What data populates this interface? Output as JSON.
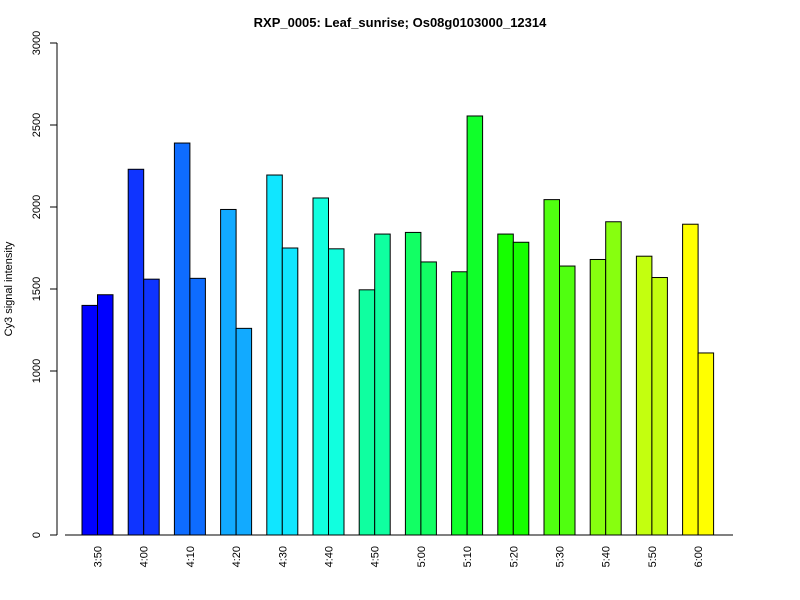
{
  "chart_data": {
    "type": "bar",
    "title": "RXP_0005: Leaf_sunrise; Os08g0103000_12314",
    "xlabel": "",
    "ylabel": "Cy3 signal intensity",
    "ylim": [
      0,
      3000
    ],
    "yticks": [
      0,
      1000,
      1500,
      2000,
      2500,
      3000
    ],
    "grid": false,
    "legend": "none",
    "categories": [
      "3:50",
      "4:00",
      "4:10",
      "4:20",
      "4:30",
      "4:40",
      "4:50",
      "5:00",
      "5:10",
      "5:20",
      "5:30",
      "5:40",
      "5:50",
      "6:00"
    ],
    "series": [
      {
        "values": [
          1400,
          2230,
          2390,
          1985,
          2195,
          2055,
          1495,
          1845,
          1605,
          1835,
          2045,
          1680,
          1700,
          1895
        ]
      },
      {
        "values": [
          1465,
          1560,
          1565,
          1260,
          1750,
          1745,
          1835,
          1665,
          2555,
          1785,
          1640,
          1910,
          1570,
          1110
        ]
      }
    ],
    "colors": [
      "#0000ff",
      "#0f34ff",
      "#0e6cff",
      "#12aaff",
      "#10e6ff",
      "#11ffdf",
      "#0fffa0",
      "#12ff64",
      "#10ff2a",
      "#16ff00",
      "#50ff10",
      "#87ff0f",
      "#c3ff0f",
      "#ffff00"
    ]
  }
}
